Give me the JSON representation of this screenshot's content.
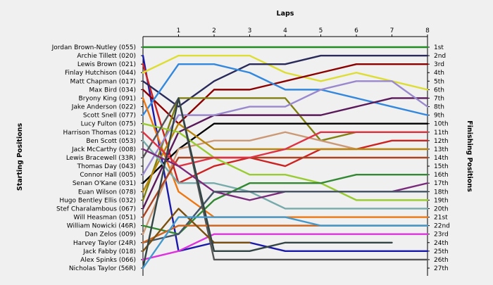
{
  "chart_data": {
    "type": "line",
    "title": "",
    "xlabel": "Laps",
    "ylabel_left": "Starting Positions",
    "ylabel_right": "Finishing Positions",
    "laps": [
      1,
      2,
      3,
      4,
      5,
      6,
      7,
      8
    ],
    "xlim": [
      0,
      8
    ],
    "ylim": [
      1,
      27
    ],
    "start_labels": [
      "Jordan Brown-Nutley (055)",
      "Archie Tillett (020)",
      "Lewis Brown (021)",
      "Finlay Hutchison (044)",
      "Matt Chapman (017)",
      "Max Bird (034)",
      "Bryony King (091)",
      "Jake Anderson (022)",
      "Scott Snell (077)",
      "Lucy Fulton (075)",
      "Harrison Thomas (012)",
      "Ben Scott (053)",
      "Jack McCarthy (008)",
      "Lewis Bracewell (33R)",
      "Thomas Day (043)",
      "Connor Hall (005)",
      "Senan O'Kane (031)",
      "Euan Wilson (078)",
      "Hugo Bentley Ellis (032)",
      "Stef Charalambous (067)",
      "Will Heasman (051)",
      "William Nowicki (46R)",
      "Dan Zelos (009)",
      "Harvey Taylor (24R)",
      "Jack Fabby (018)",
      "Alex Spinks (066)",
      "Nicholas Taylor (56R)"
    ],
    "finish_labels": [
      "1st",
      "2nd",
      "3rd",
      "4th",
      "5th",
      "6th",
      "7th",
      "8th",
      "9th",
      "10th",
      "11th",
      "12th",
      "13th",
      "14th",
      "15th",
      "16th",
      "17th",
      "18th",
      "19th",
      "20th",
      "21st",
      "22nd",
      "23rd",
      "24th",
      "25th",
      "26th",
      "27th"
    ],
    "series": [
      {
        "color": "#228b22",
        "positions": [
          1,
          1,
          1,
          1,
          1,
          1,
          1,
          1,
          1
        ]
      },
      {
        "color": "#1a1aaa",
        "positions": [
          2,
          25,
          24,
          24,
          25,
          25,
          25,
          25,
          25
        ]
      },
      {
        "color": "#cc2222",
        "positions": [
          3,
          17,
          15,
          14,
          15,
          13,
          13,
          12,
          12
        ]
      },
      {
        "color": "#dddd33",
        "positions": [
          4,
          2,
          2,
          2,
          4,
          5,
          4,
          5,
          6
        ]
      },
      {
        "color": "#2a2a5a",
        "positions": [
          5,
          8,
          5,
          3,
          3,
          2,
          2,
          2,
          2
        ]
      },
      {
        "color": "#8b0000",
        "positions": [
          6,
          10,
          6,
          6,
          5,
          4,
          3,
          3,
          3
        ]
      },
      {
        "color": "#3388dd",
        "positions": [
          9,
          3,
          3,
          4,
          6,
          6,
          7,
          8,
          9
        ]
      },
      {
        "color": "#ee7711",
        "positions": [
          7,
          18,
          21,
          21,
          21,
          21,
          21,
          21,
          21
        ]
      },
      {
        "color": "#dd33dd",
        "positions": [
          26,
          25,
          23,
          23,
          23,
          23,
          23,
          23,
          23
        ]
      },
      {
        "color": "#808010",
        "positions": [
          19,
          7,
          7,
          7,
          7,
          12,
          11,
          11,
          11
        ]
      },
      {
        "color": "#5a1a5a",
        "positions": [
          20,
          11,
          9,
          9,
          9,
          9,
          8,
          7,
          7
        ]
      },
      {
        "color": "#9988cc",
        "positions": [
          16,
          9,
          9,
          8,
          8,
          6,
          5,
          5,
          8
        ]
      },
      {
        "color": "#000000",
        "positions": [
          17,
          13,
          10,
          10,
          10,
          10,
          10,
          10,
          10
        ]
      },
      {
        "color": "#cc9977",
        "positions": [
          23,
          13,
          12,
          12,
          11,
          12,
          13,
          13,
          13
        ]
      },
      {
        "color": "#b8860b",
        "positions": [
          18,
          10,
          13,
          13,
          13,
          13,
          13,
          13,
          13
        ]
      },
      {
        "color": "#99cc33",
        "positions": [
          10,
          11,
          14,
          16,
          16,
          17,
          19,
          19,
          19
        ]
      },
      {
        "color": "#77aaaa",
        "positions": [
          12,
          17,
          17,
          18,
          20,
          20,
          20,
          20,
          20
        ]
      },
      {
        "color": "#555555",
        "positions": [
          14,
          7,
          26,
          26,
          26,
          26,
          26,
          26,
          26
        ]
      },
      {
        "color": "#aa4422",
        "positions": [
          21,
          14,
          14,
          14,
          14,
          14,
          14,
          14,
          14
        ]
      },
      {
        "color": "#dd3344",
        "positions": [
          11,
          15,
          14,
          14,
          13,
          11,
          11,
          11,
          11
        ]
      },
      {
        "color": "#338833",
        "positions": [
          22,
          23,
          19,
          17,
          17,
          17,
          16,
          16,
          16
        ]
      },
      {
        "color": "#7a2a7a",
        "positions": [
          13,
          15,
          18,
          19,
          18,
          18,
          18,
          18,
          17
        ]
      },
      {
        "color": "#445566",
        "positions": [
          24,
          23,
          18,
          18,
          18,
          18,
          18,
          18,
          18
        ]
      },
      {
        "color": "#cc6622",
        "positions": [
          24,
          22,
          22,
          22,
          22,
          22,
          22,
          22,
          22
        ]
      },
      {
        "color": "#7a5010",
        "positions": [
          25,
          20,
          24,
          24
        ]
      },
      {
        "color": "#334444",
        "positions": [
          27,
          7,
          25,
          25,
          24,
          24,
          24,
          24
        ]
      },
      {
        "color": "#4499cc",
        "positions": [
          27,
          21,
          21,
          21,
          21,
          22,
          22,
          22,
          22
        ]
      }
    ]
  }
}
